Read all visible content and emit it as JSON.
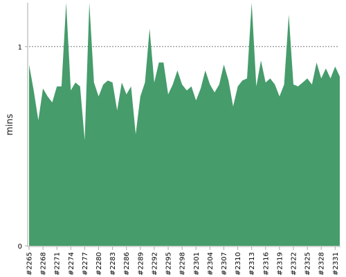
{
  "chart_data": {
    "type": "area",
    "title": "",
    "xlabel": "",
    "ylabel": "mins",
    "ylim": [
      0,
      1.22
    ],
    "y_ticks": [
      {
        "value": 0,
        "label": "0"
      },
      {
        "value": 1,
        "label": "1"
      }
    ],
    "reference_line": {
      "value": 1,
      "style": "dotted"
    },
    "color": "#469c6b",
    "x_tick_labels": [
      "#2265",
      "#2268",
      "#2271",
      "#2274",
      "#2277",
      "#2280",
      "#2283",
      "#2286",
      "#2289",
      "#2292",
      "#2295",
      "#2298",
      "#2301",
      "#2304",
      "#2307",
      "#2310",
      "#2313",
      "#2316",
      "#2319",
      "#2322",
      "#2325",
      "#2328",
      "#2331"
    ],
    "x_tick_start": 2265,
    "x_tick_step": 3,
    "series": [
      {
        "x": [
          2265,
          2266,
          2267,
          2268,
          2269,
          2270,
          2271,
          2272,
          2273,
          2274,
          2275,
          2276,
          2277,
          2278,
          2279,
          2280,
          2281,
          2282,
          2283,
          2284,
          2285,
          2286,
          2287,
          2288,
          2289,
          2290,
          2291,
          2292,
          2293,
          2294,
          2295,
          2296,
          2297,
          2298,
          2299,
          2300,
          2301,
          2302,
          2303,
          2304,
          2305,
          2306,
          2307,
          2308,
          2309,
          2310,
          2311,
          2312,
          2313,
          2314,
          2315,
          2316,
          2317,
          2318,
          2319,
          2320,
          2321,
          2322,
          2323,
          2324,
          2325,
          2326,
          2327,
          2328,
          2329,
          2330,
          2331,
          2332
        ],
        "values": [
          0.91,
          0.78,
          0.63,
          0.79,
          0.75,
          0.72,
          0.8,
          0.8,
          1.25,
          0.78,
          0.82,
          0.8,
          0.53,
          1.25,
          0.82,
          0.75,
          0.81,
          0.83,
          0.82,
          0.68,
          0.82,
          0.76,
          0.8,
          0.56,
          0.75,
          0.82,
          1.09,
          0.82,
          0.92,
          0.92,
          0.76,
          0.81,
          0.88,
          0.81,
          0.78,
          0.8,
          0.73,
          0.79,
          0.88,
          0.81,
          0.77,
          0.81,
          0.91,
          0.83,
          0.7,
          0.8,
          0.83,
          0.84,
          1.25,
          0.8,
          0.93,
          0.82,
          0.84,
          0.81,
          0.75,
          0.81,
          1.16,
          0.81,
          0.8,
          0.82,
          0.84,
          0.81,
          0.92,
          0.84,
          0.89,
          0.84,
          0.9,
          0.85
        ]
      }
    ]
  }
}
